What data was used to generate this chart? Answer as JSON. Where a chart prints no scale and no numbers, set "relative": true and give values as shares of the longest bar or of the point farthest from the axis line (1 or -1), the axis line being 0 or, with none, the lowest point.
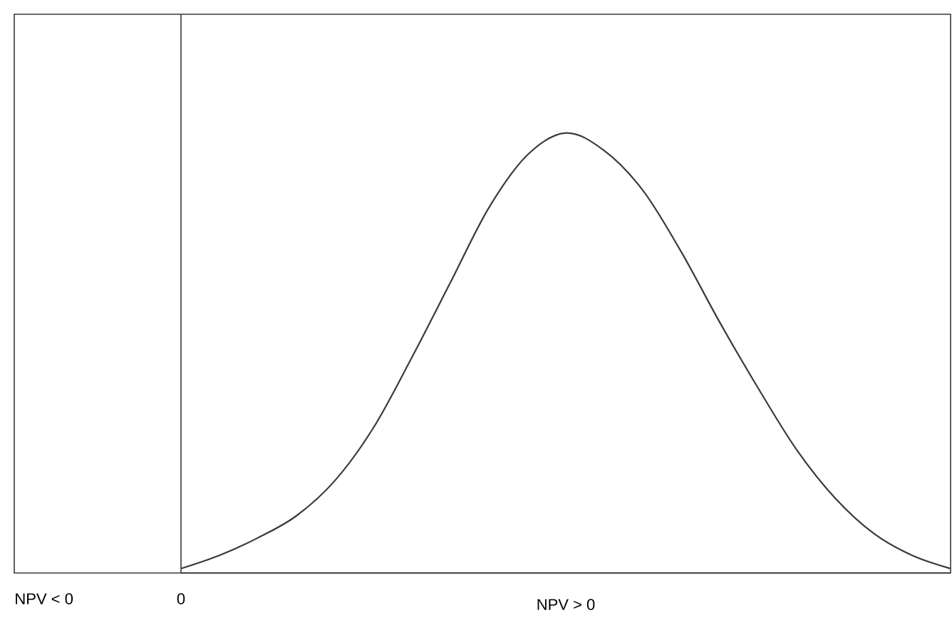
{
  "chart_data": {
    "type": "line",
    "relative": true,
    "categories": [
      null,
      null,
      null,
      null,
      null,
      null,
      null,
      null,
      null,
      null,
      null,
      null,
      null,
      null,
      null,
      null,
      null,
      null,
      null,
      null,
      null
    ],
    "series": [
      {
        "color": "#3a3a3a",
        "values": [
          0.01,
          0.04,
          0.08,
          0.13,
          0.21,
          0.33,
          0.49,
          0.66,
          0.83,
          0.95,
          1.0,
          0.96,
          0.87,
          0.73,
          0.57,
          0.42,
          0.28,
          0.17,
          0.09,
          0.04,
          0.01
        ]
      }
    ],
    "annotations": [
      "NPV < 0",
      "0",
      "NPV > 0"
    ],
    "marker": "none",
    "line_style": "solid"
  }
}
